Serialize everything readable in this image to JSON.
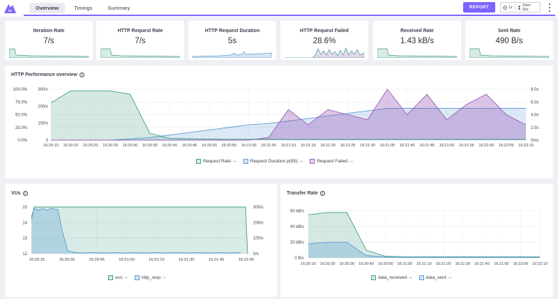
{
  "header": {
    "tabs": [
      {
        "label": "Overview",
        "active": true
      },
      {
        "label": "Timings",
        "active": false
      },
      {
        "label": "Summary",
        "active": false
      }
    ],
    "report_label": "REPORT",
    "speed": "1x",
    "duration": "2min 30s",
    "accent": "#7d64ff"
  },
  "cards": [
    {
      "label": "Iteration Rate",
      "value": "7/s"
    },
    {
      "label": "HTTP Request Rate",
      "value": "7/s"
    },
    {
      "label": "HTTP Request Duration",
      "value": "5s"
    },
    {
      "label": "HTTP Request Failed",
      "value": "28.6%"
    },
    {
      "label": "Received Rate",
      "value": "1.43 kB/s"
    },
    {
      "label": "Sent Rate",
      "value": "490 B/s"
    }
  ],
  "performance": {
    "title": "HTTP Performance overview",
    "legend": [
      {
        "label": "Request Rate: --",
        "color": "#3f9c84"
      },
      {
        "label": "Request Duration p(95): --",
        "color": "#5b9bd5"
      },
      {
        "label": "Request Failed: --",
        "color": "#9b59b6"
      }
    ]
  },
  "vus": {
    "title": "VUs",
    "legend": [
      {
        "label": "vus: --",
        "color": "#3f9c84"
      },
      {
        "label": "http_reqs: --",
        "color": "#5b9bd5"
      }
    ]
  },
  "transfer": {
    "title": "Transfer Rate",
    "legend": [
      {
        "label": "data_received: --",
        "color": "#3f9c84"
      },
      {
        "label": "data_sent: --",
        "color": "#5b9bd5"
      }
    ]
  },
  "chart_data": [
    {
      "type": "area",
      "title": "HTTP Performance overview",
      "x": [
        "16:20:10",
        "16:20:15",
        "16:20:20",
        "16:20:25",
        "16:20:30",
        "16:20:35",
        "16:20:40",
        "16:20:45",
        "16:20:50",
        "16:20:55",
        "16:21:00",
        "16:21:05",
        "16:21:10",
        "16:21:15",
        "16:21:20",
        "16:21:25",
        "16:21:30",
        "16:21:35",
        "16:21:40",
        "16:21:45",
        "16:21:50",
        "16:21:55",
        "16:22:00",
        "16:22:05",
        "16:22:10"
      ],
      "left_axis_pct": [
        "0.0%",
        "25.0%",
        "50.0%",
        "75.0%",
        "100.0%"
      ],
      "left_axis_rate": [
        "0",
        "100/s",
        "200/s",
        "300/s"
      ],
      "right_axis": [
        "0ms",
        "2.0s",
        "4.0s",
        "6.0s",
        "8.0s"
      ],
      "ylim_rate": [
        0,
        300
      ],
      "ylim_duration_s": [
        0,
        8
      ],
      "series": [
        {
          "name": "Request Rate",
          "values": [
            220,
            290,
            290,
            290,
            270,
            40,
            10,
            8,
            6,
            5,
            5,
            5,
            4,
            4,
            4,
            4,
            4,
            4,
            4,
            4,
            4,
            4,
            4,
            4,
            4
          ]
        },
        {
          "name": "Request Duration p(95)",
          "values": [
            0,
            0,
            0,
            0,
            0.2,
            0.4,
            0.8,
            1.2,
            1.6,
            2.0,
            2.4,
            2.6,
            3.0,
            3.4,
            3.8,
            4.2,
            4.6,
            5.0,
            5.0,
            5.0,
            5.0,
            5.0,
            5.0,
            5.0,
            5.0
          ]
        },
        {
          "name": "Request Failed",
          "values": [
            0,
            0,
            0,
            0,
            0,
            0,
            0,
            0,
            0,
            0,
            0,
            0.05,
            0.6,
            0.3,
            0.6,
            0.5,
            0.4,
            1.0,
            0.5,
            0.9,
            0.4,
            0.7,
            0.9,
            0.5,
            0.3
          ]
        }
      ]
    },
    {
      "type": "area",
      "title": "VUs",
      "x": [
        "16:20:15",
        "16:20:30",
        "16:20:45",
        "16:21:00",
        "16:21:15",
        "16:21:30",
        "16:21:45",
        "16:22:00"
      ],
      "left_axis": [
        "12",
        "13",
        "14",
        "15"
      ],
      "right_axis": [
        "0/s",
        "100/s",
        "200/s",
        "300/s"
      ],
      "series": [
        {
          "name": "vus",
          "values": [
            15,
            15,
            15,
            15,
            15,
            15,
            15,
            15
          ]
        },
        {
          "name": "http_reqs",
          "values": [
            290,
            20,
            8,
            5,
            5,
            5,
            5,
            4
          ]
        }
      ]
    },
    {
      "type": "area",
      "title": "Transfer Rate",
      "x": [
        "16:20:10",
        "16:20:20",
        "16:20:30",
        "16:20:40",
        "16:20:50",
        "16:21:00",
        "16:21:10",
        "16:21:20",
        "16:21:30",
        "16:21:40",
        "16:21:50",
        "16:22:00",
        "16:22:10"
      ],
      "left_axis": [
        "0 B/s",
        "20 kB/s",
        "40 kB/s",
        "60 kB/s"
      ],
      "ylim": [
        0,
        65
      ],
      "series": [
        {
          "name": "data_received",
          "values": [
            55,
            58,
            58,
            10,
            2,
            1.5,
            1.5,
            1.5,
            1.5,
            1.5,
            1.5,
            1.5,
            1.5
          ]
        },
        {
          "name": "data_sent",
          "values": [
            18,
            20,
            20,
            3,
            1,
            0.5,
            0.5,
            0.5,
            0.5,
            0.5,
            0.5,
            0.5,
            0.5
          ]
        }
      ]
    }
  ]
}
